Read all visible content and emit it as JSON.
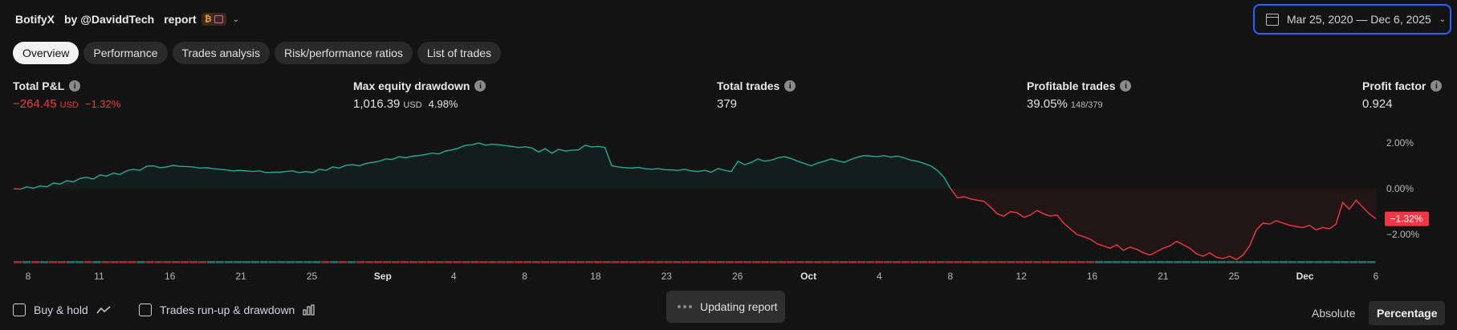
{
  "header": {
    "strategy": "BotifyX",
    "glyph1": "",
    "by": "by @DaviddTech",
    "glyph2": "",
    "report": "report",
    "caret": "⌄"
  },
  "date_range": {
    "label": "Mar 25, 2020 — Dec 6, 2025",
    "caret": "⌄"
  },
  "tabs": [
    {
      "label": "Overview",
      "active": true
    },
    {
      "label": "Performance",
      "active": false
    },
    {
      "label": "Trades analysis",
      "active": false
    },
    {
      "label": "Risk/performance ratios",
      "active": false
    },
    {
      "label": "List of trades",
      "active": false
    }
  ],
  "stats": {
    "total_pnl": {
      "label": "Total P&L",
      "value": "−264.45",
      "unit": "USD",
      "pct": "−1.32%"
    },
    "max_dd": {
      "label": "Max equity drawdown",
      "value": "1,016.39",
      "unit": "USD",
      "pct": "4.98%"
    },
    "total_trades": {
      "label": "Total trades",
      "value": "379"
    },
    "profitable": {
      "label": "Profitable trades",
      "value": "39.05%",
      "sub": "148/379"
    },
    "profit_factor": {
      "label": "Profit factor",
      "value": "0.924"
    },
    "info_glyph": "i"
  },
  "colors": {
    "positive": "#22ab94",
    "negative": "#f23645",
    "accent": "#2962ff"
  },
  "chart_data": {
    "type": "area",
    "y_unit": "%",
    "y_ticks": [
      "2.00%",
      "0.00%",
      "−2.00%"
    ],
    "y_tick_values": [
      2,
      0,
      -2
    ],
    "current_label": "−1.32%",
    "x_ticks": [
      {
        "label": "8",
        "bold": false
      },
      {
        "label": "11",
        "bold": false
      },
      {
        "label": "16",
        "bold": false
      },
      {
        "label": "21",
        "bold": false
      },
      {
        "label": "25",
        "bold": false
      },
      {
        "label": "Sep",
        "bold": true
      },
      {
        "label": "4",
        "bold": false
      },
      {
        "label": "8",
        "bold": false
      },
      {
        "label": "18",
        "bold": false
      },
      {
        "label": "23",
        "bold": false
      },
      {
        "label": "26",
        "bold": false
      },
      {
        "label": "Oct",
        "bold": true
      },
      {
        "label": "4",
        "bold": false
      },
      {
        "label": "8",
        "bold": false
      },
      {
        "label": "12",
        "bold": false
      },
      {
        "label": "16",
        "bold": false
      },
      {
        "label": "21",
        "bold": false
      },
      {
        "label": "25",
        "bold": false
      },
      {
        "label": "Dec",
        "bold": true
      },
      {
        "label": "6",
        "bold": false
      }
    ],
    "equity_pct": [
      0.0,
      -0.02,
      0.08,
      0.02,
      0.12,
      0.08,
      0.25,
      0.2,
      0.35,
      0.3,
      0.45,
      0.5,
      0.42,
      0.6,
      0.55,
      0.68,
      0.62,
      0.78,
      0.85,
      0.8,
      0.98,
      1.0,
      0.92,
      0.95,
      1.02,
      0.98,
      0.97,
      0.95,
      0.9,
      0.92,
      0.88,
      0.85,
      0.82,
      0.78,
      0.8,
      0.78,
      0.75,
      0.78,
      0.7,
      0.72,
      0.72,
      0.75,
      0.78,
      0.7,
      0.75,
      0.7,
      0.85,
      0.8,
      0.95,
      0.9,
      1.02,
      1.05,
      1.0,
      1.1,
      1.15,
      1.2,
      1.3,
      1.28,
      1.4,
      1.35,
      1.42,
      1.45,
      1.5,
      1.55,
      1.52,
      1.65,
      1.7,
      1.78,
      1.9,
      1.92,
      2.0,
      1.9,
      1.95,
      1.92,
      1.88,
      1.85,
      1.8,
      1.83,
      1.78,
      1.6,
      1.75,
      1.55,
      1.72,
      1.65,
      1.68,
      1.7,
      1.9,
      1.82,
      1.85,
      1.8,
      1.0,
      0.95,
      0.92,
      0.9,
      0.93,
      0.88,
      0.85,
      0.88,
      0.83,
      0.82,
      0.8,
      0.85,
      0.78,
      0.75,
      0.8,
      0.72,
      0.88,
      0.8,
      0.75,
      1.2,
      1.05,
      1.15,
      1.3,
      1.2,
      1.25,
      1.35,
      1.4,
      1.32,
      1.2,
      1.1,
      1.0,
      1.12,
      1.2,
      1.3,
      1.22,
      1.15,
      1.28,
      1.38,
      1.45,
      1.42,
      1.4,
      1.45,
      1.38,
      1.42,
      1.35,
      1.25,
      1.2,
      1.1,
      1.0,
      0.8,
      0.5,
      0.0,
      -0.4,
      -0.35,
      -0.45,
      -0.5,
      -0.55,
      -0.8,
      -1.1,
      -1.2,
      -1.0,
      -1.05,
      -1.25,
      -1.15,
      -0.95,
      -1.1,
      -1.2,
      -1.15,
      -1.5,
      -1.75,
      -2.0,
      -2.1,
      -2.2,
      -2.4,
      -2.5,
      -2.6,
      -2.45,
      -2.7,
      -2.55,
      -2.65,
      -2.8,
      -2.9,
      -2.75,
      -2.6,
      -2.5,
      -2.3,
      -2.45,
      -2.6,
      -2.85,
      -2.95,
      -2.8,
      -3.0,
      -3.05,
      -2.95,
      -3.1,
      -2.9,
      -2.5,
      -1.8,
      -1.5,
      -1.55,
      -1.4,
      -1.5,
      -1.6,
      -1.65,
      -1.7,
      -1.6,
      -1.8,
      -1.7,
      -1.75,
      -1.55,
      -0.6,
      -0.9,
      -0.5,
      -0.8,
      -1.1,
      -1.32
    ],
    "trade_markers": [
      "n",
      "g",
      "n",
      "g",
      "n",
      "n",
      "g",
      "g",
      "n",
      "g",
      "n",
      "n",
      "n",
      "n",
      "g",
      "n",
      "n",
      "n",
      "n",
      "n",
      "n",
      "n",
      "g",
      "g",
      "g",
      "g",
      "g",
      "g",
      "g",
      "g",
      "g",
      "g",
      "g",
      "g",
      "g",
      "n",
      "g",
      "n",
      "g",
      "n",
      "n",
      "n",
      "n",
      "n",
      "n",
      "n",
      "n",
      "n",
      "n",
      "n",
      "n",
      "n",
      "n",
      "n",
      "n",
      "n",
      "n",
      "n",
      "n",
      "n",
      "n",
      "n",
      "n",
      "n",
      "n",
      "n",
      "n",
      "n",
      "n",
      "n",
      "n",
      "n",
      "n",
      "n",
      "n",
      "n",
      "n",
      "n",
      "n",
      "n",
      "n",
      "n",
      "n",
      "n",
      "n",
      "n",
      "n",
      "n",
      "n",
      "n",
      "n",
      "n",
      "n",
      "n",
      "n",
      "n",
      "n",
      "n",
      "n",
      "n",
      "n",
      "n",
      "n",
      "n",
      "n",
      "n",
      "n",
      "n",
      "n",
      "n",
      "n",
      "n",
      "n",
      "n",
      "n",
      "n",
      "n",
      "n",
      "n",
      "n",
      "n",
      "n",
      "n",
      "g",
      "g",
      "g",
      "g",
      "g",
      "g",
      "g",
      "g",
      "g",
      "g",
      "g",
      "g",
      "g",
      "g",
      "g",
      "g",
      "g",
      "g",
      "g",
      "g",
      "g",
      "g",
      "g",
      "g",
      "g",
      "g",
      "g",
      "g",
      "g",
      "g",
      "g",
      "g"
    ]
  },
  "footer": {
    "buy_hold": "Buy & hold",
    "runup": "Trades run-up & drawdown",
    "toast": "Updating report",
    "absolute": "Absolute",
    "percentage": "Percentage"
  }
}
